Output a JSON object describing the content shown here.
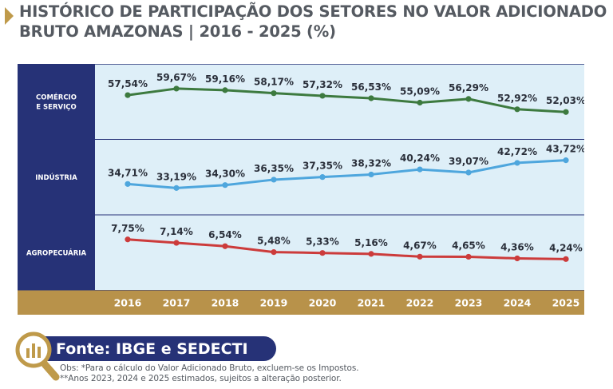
{
  "title": {
    "line1": "HISTÓRICO DE PARTICIPAÇÃO DOS SETORES NO VALOR ADICIONADO",
    "line2": "BRUTO AMAZONAS | 2016 - 2025 (%)"
  },
  "colors": {
    "panel_bg": "#deeff8",
    "row_label_bg": "#263277",
    "axis_band": "#b8924a",
    "title_text": "#555a61",
    "grid_line": "#263277"
  },
  "chart_data": {
    "type": "line",
    "title": "HISTÓRICO DE PARTICIPAÇÃO DOS SETORES NO VALOR ADICIONADO BRUTO AMAZONAS | 2016 - 2025 (%)",
    "x": [
      "2016",
      "2017",
      "2018",
      "2019",
      "2020",
      "2021",
      "2022",
      "2023",
      "2024",
      "2025"
    ],
    "series": [
      {
        "name": "COMÉRCIO E SERVIÇO",
        "name_lines": [
          "COMÉRCIO",
          "E SERVIÇO"
        ],
        "color": "#3d7a3f",
        "values": [
          57.54,
          59.67,
          59.16,
          58.17,
          57.32,
          56.53,
          55.09,
          56.29,
          52.92,
          52.03
        ],
        "labels": [
          "57,54%",
          "59,67%",
          "59,16%",
          "58,17%",
          "57,32%",
          "56,53%",
          "55,09%",
          "56,29%",
          "52,92%",
          "52,03%"
        ],
        "range": [
          50,
          62
        ]
      },
      {
        "name": "INDÚSTRIA",
        "name_lines": [
          "INDÚSTRIA"
        ],
        "color": "#4ea6dd",
        "values": [
          34.71,
          33.19,
          34.3,
          36.35,
          37.35,
          38.32,
          40.24,
          39.07,
          42.72,
          43.72
        ],
        "labels": [
          "34,71%",
          "33,19%",
          "34,30%",
          "36,35%",
          "37,35%",
          "38,32%",
          "40,24%",
          "39,07%",
          "42,72%",
          "43,72%"
        ],
        "range": [
          28,
          48
        ]
      },
      {
        "name": "AGROPECUÁRIA",
        "name_lines": [
          "AGROPECUÁRIA"
        ],
        "color": "#cc3b3b",
        "values": [
          7.75,
          7.14,
          6.54,
          5.48,
          5.33,
          5.16,
          4.67,
          4.65,
          4.36,
          4.24
        ],
        "labels": [
          "7,75%",
          "7,14%",
          "6,54%",
          "5,48%",
          "5,33%",
          "5,16%",
          "4,67%",
          "4,65%",
          "4,36%",
          "4,24%"
        ],
        "range": [
          3,
          9
        ]
      }
    ]
  },
  "source": {
    "label": "Fonte: IBGE e SEDECTI",
    "icon": "magnifier-chart-icon"
  },
  "notes": {
    "line1": "Obs: *Para o cálculo do Valor Adicionado Bruto, excluem-se os Impostos.",
    "line2": "**Anos 2023, 2024 e 2025 estimados, sujeitos a alteração posterior."
  }
}
